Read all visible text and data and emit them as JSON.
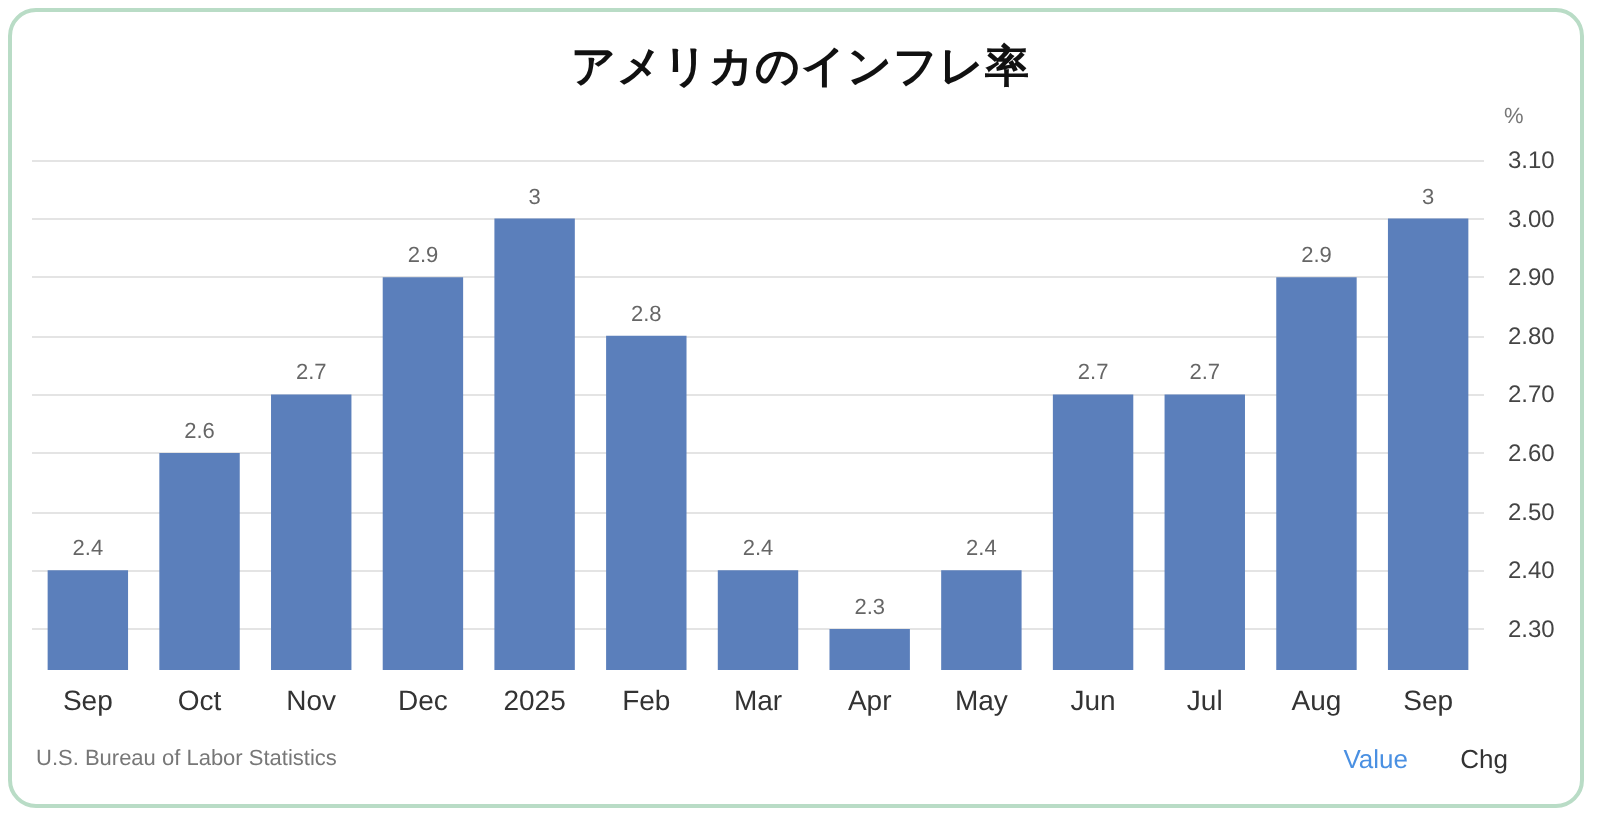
{
  "chart_data": {
    "type": "bar",
    "title": "アメリカのインフレ率",
    "ylabel": "%",
    "categories": [
      "Sep",
      "Oct",
      "Nov",
      "Dec",
      "2025",
      "Feb",
      "Mar",
      "Apr",
      "May",
      "Jun",
      "Jul",
      "Aug",
      "Sep"
    ],
    "values": [
      2.4,
      2.6,
      2.7,
      2.9,
      3,
      2.8,
      2.4,
      2.3,
      2.4,
      2.7,
      2.7,
      2.9,
      3
    ],
    "color": "#5b7fbb",
    "ylim": [
      2.23,
      3.1
    ],
    "yticks": [
      {
        "value": 2.3,
        "label": "2.30"
      },
      {
        "value": 2.4,
        "label": "2.40"
      },
      {
        "value": 2.5,
        "label": "2.50"
      },
      {
        "value": 2.6,
        "label": "2.60"
      },
      {
        "value": 2.7,
        "label": "2.70"
      },
      {
        "value": 2.8,
        "label": "2.80"
      },
      {
        "value": 2.9,
        "label": "2.90"
      },
      {
        "value": 3.0,
        "label": "3.00"
      },
      {
        "value": 3.1,
        "label": "3.10"
      }
    ],
    "grid": "y",
    "data_labels": true,
    "annotations": [
      "U.S. Bureau of Labor Statistics",
      "Value",
      "Chg"
    ]
  }
}
